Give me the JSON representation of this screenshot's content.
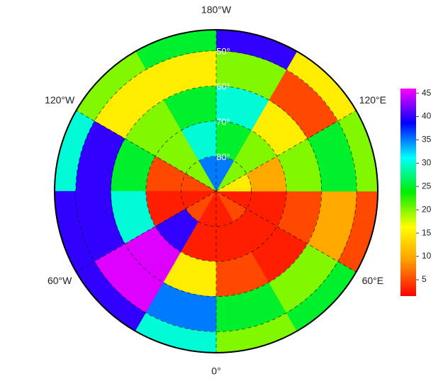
{
  "map_data": {
    "lat_edges": [
      90,
      80,
      70,
      60,
      50,
      44
    ],
    "lon_edges": [
      0,
      30,
      60,
      90,
      120,
      150,
      180,
      210,
      240,
      270,
      300,
      330,
      360
    ],
    "grid": [
      [
        3,
        5,
        3,
        15,
        20,
        35,
        35,
        20,
        5,
        3,
        5,
        3
      ],
      [
        3,
        3,
        3,
        10,
        20,
        25,
        30,
        20,
        5,
        3,
        40,
        3
      ],
      [
        5,
        3,
        5,
        20,
        15,
        30,
        25,
        20,
        25,
        30,
        45,
        15
      ],
      [
        25,
        20,
        10,
        25,
        5,
        20,
        15,
        15,
        40,
        40,
        45,
        35
      ],
      [
        20,
        25,
        5,
        20,
        15,
        40,
        25,
        20,
        30,
        40,
        40,
        30
      ]
    ],
    "lonticks": [
      {
        "value": 0,
        "label": "0°"
      },
      {
        "value": 60,
        "label": "60°E"
      },
      {
        "value": 120,
        "label": "120°E"
      },
      {
        "value": 180,
        "label": "180°W"
      },
      {
        "value": 240,
        "label": "120°W"
      },
      {
        "value": 300,
        "label": "60°W"
      }
    ],
    "latticks": [
      {
        "value": 50,
        "label": "50°"
      },
      {
        "value": 60,
        "label": "60°"
      },
      {
        "value": 70,
        "label": "70°"
      },
      {
        "value": 80,
        "label": "80°"
      }
    ],
    "colorbar": {
      "lim": [
        1.5,
        46
      ],
      "ticks": [
        5,
        10,
        15,
        20,
        25,
        30,
        35,
        40,
        45
      ],
      "colors": [
        "#ff0000",
        "#ff9900",
        "#ffff00",
        "#00ee00",
        "#00ffff",
        "#0000ff",
        "#ff00ff"
      ]
    }
  }
}
